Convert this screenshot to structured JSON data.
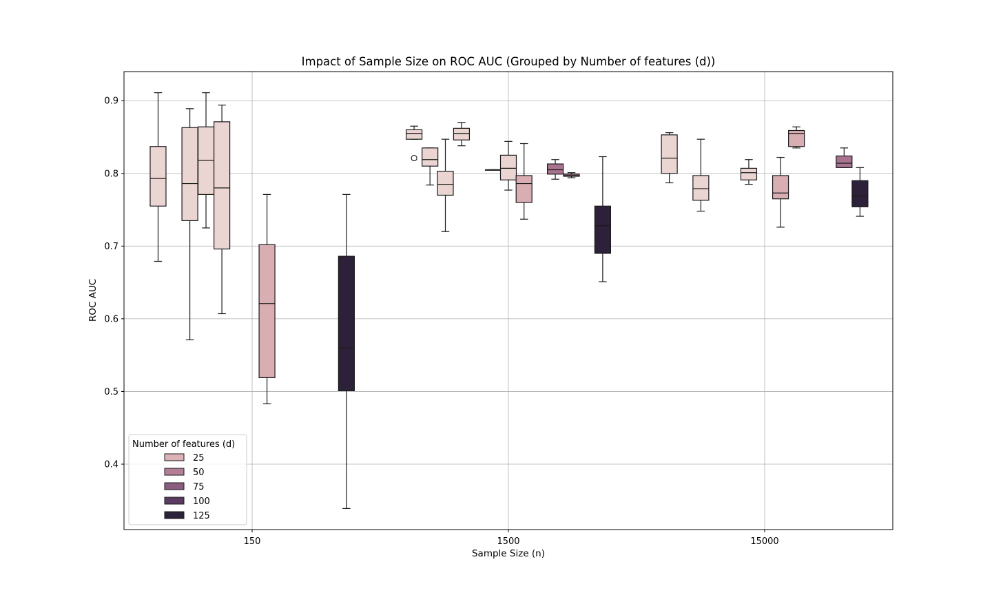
{
  "chart_data": {
    "type": "box",
    "title": "Impact of Sample Size on ROC AUC (Grouped by Number of features (d))",
    "xlabel": "Sample Size (n)",
    "ylabel": "ROC AUC",
    "categories": [
      "150",
      "1500",
      "15000"
    ],
    "ylim": [
      0.31,
      0.94
    ],
    "yticks": [
      0.4,
      0.5,
      0.6,
      0.7,
      0.8,
      0.9
    ],
    "grid": true,
    "legend": {
      "title": "Number of features (d)",
      "position": "lower-left",
      "entries": [
        {
          "label": "25",
          "color": "#dcb2b7"
        },
        {
          "label": "50",
          "color": "#b47e96"
        },
        {
          "label": "75",
          "color": "#8a5c80"
        },
        {
          "label": "100",
          "color": "#5c3b62"
        },
        {
          "label": "125",
          "color": "#2b2138"
        }
      ]
    },
    "boxes": [
      {
        "category": "150",
        "offset": -0.367,
        "color": "#ead5d2",
        "whisker_low": 0.679,
        "q1": 0.755,
        "median": 0.793,
        "q3": 0.837,
        "whisker_high": 0.911,
        "outliers": []
      },
      {
        "category": "150",
        "offset": -0.243,
        "color": "#ead5d2",
        "whisker_low": 0.571,
        "q1": 0.735,
        "median": 0.786,
        "q3": 0.863,
        "whisker_high": 0.889,
        "outliers": []
      },
      {
        "category": "150",
        "offset": -0.18,
        "color": "#ead5d2",
        "whisker_low": 0.725,
        "q1": 0.771,
        "median": 0.818,
        "q3": 0.864,
        "whisker_high": 0.911,
        "outliers": []
      },
      {
        "category": "150",
        "offset": -0.118,
        "color": "#ead5d2",
        "whisker_low": 0.607,
        "q1": 0.696,
        "median": 0.78,
        "q3": 0.871,
        "whisker_high": 0.894,
        "outliers": []
      },
      {
        "category": "150",
        "offset": 0.058,
        "color": "#d9aeb3",
        "whisker_low": 0.483,
        "q1": 0.519,
        "median": 0.621,
        "q3": 0.702,
        "whisker_high": 0.771,
        "outliers": []
      },
      {
        "category": "150",
        "offset": 0.368,
        "color": "#2c2139",
        "whisker_low": 0.339,
        "q1": 0.501,
        "median": 0.56,
        "q3": 0.686,
        "whisker_high": 0.771,
        "outliers": []
      },
      {
        "category": "1500",
        "offset": -0.368,
        "color": "#ead5d2",
        "whisker_low": 0.847,
        "q1": 0.847,
        "median": 0.855,
        "q3": 0.86,
        "whisker_high": 0.865,
        "outliers": [
          0.821
        ]
      },
      {
        "category": "1500",
        "offset": -0.306,
        "color": "#ead5d2",
        "whisker_low": 0.784,
        "q1": 0.81,
        "median": 0.819,
        "q3": 0.835,
        "whisker_high": 0.835,
        "outliers": []
      },
      {
        "category": "1500",
        "offset": -0.246,
        "color": "#ead5d2",
        "whisker_low": 0.72,
        "q1": 0.77,
        "median": 0.785,
        "q3": 0.803,
        "whisker_high": 0.847,
        "outliers": []
      },
      {
        "category": "1500",
        "offset": -0.183,
        "color": "#ead5d2",
        "whisker_low": 0.838,
        "q1": 0.846,
        "median": 0.855,
        "q3": 0.862,
        "whisker_high": 0.87,
        "outliers": []
      },
      {
        "category": "1500",
        "offset": -0.059,
        "color": "#ead5d2",
        "whisker_low": 0.805,
        "q1": 0.805,
        "median": 0.805,
        "q3": 0.805,
        "whisker_high": 0.805,
        "outliers": []
      },
      {
        "category": "1500",
        "offset": 0.0,
        "color": "#ead5d2",
        "whisker_low": 0.777,
        "q1": 0.791,
        "median": 0.807,
        "q3": 0.825,
        "whisker_high": 0.844,
        "outliers": []
      },
      {
        "category": "1500",
        "offset": 0.061,
        "color": "#d9aeb3",
        "whisker_low": 0.737,
        "q1": 0.76,
        "median": 0.786,
        "q3": 0.797,
        "whisker_high": 0.841,
        "outliers": []
      },
      {
        "category": "1500",
        "offset": 0.183,
        "color": "#a97390",
        "whisker_low": 0.792,
        "q1": 0.799,
        "median": 0.805,
        "q3": 0.813,
        "whisker_high": 0.819,
        "outliers": []
      },
      {
        "category": "1500",
        "offset": 0.246,
        "color": "#a97390",
        "whisker_low": 0.794,
        "q1": 0.796,
        "median": 0.797,
        "q3": 0.799,
        "whisker_high": 0.801,
        "outliers": []
      },
      {
        "category": "1500",
        "offset": 0.368,
        "color": "#2c2139",
        "whisker_low": 0.651,
        "q1": 0.69,
        "median": 0.728,
        "q3": 0.755,
        "whisker_high": 0.823,
        "outliers": []
      },
      {
        "category": "15000",
        "offset": -0.372,
        "color": "#ead5d2",
        "whisker_low": 0.787,
        "q1": 0.8,
        "median": 0.821,
        "q3": 0.853,
        "whisker_high": 0.856,
        "outliers": []
      },
      {
        "category": "15000",
        "offset": -0.249,
        "color": "#ead5d2",
        "whisker_low": 0.748,
        "q1": 0.763,
        "median": 0.779,
        "q3": 0.797,
        "whisker_high": 0.847,
        "outliers": []
      },
      {
        "category": "15000",
        "offset": -0.062,
        "color": "#ead5d2",
        "whisker_low": 0.785,
        "q1": 0.791,
        "median": 0.801,
        "q3": 0.807,
        "whisker_high": 0.819,
        "outliers": []
      },
      {
        "category": "15000",
        "offset": 0.062,
        "color": "#d9aeb3",
        "whisker_low": 0.726,
        "q1": 0.765,
        "median": 0.773,
        "q3": 0.797,
        "whisker_high": 0.822,
        "outliers": []
      },
      {
        "category": "15000",
        "offset": 0.124,
        "color": "#d9aeb3",
        "whisker_low": 0.835,
        "q1": 0.837,
        "median": 0.855,
        "q3": 0.859,
        "whisker_high": 0.864,
        "outliers": []
      },
      {
        "category": "15000",
        "offset": 0.31,
        "color": "#a97390",
        "whisker_low": 0.808,
        "q1": 0.808,
        "median": 0.814,
        "q3": 0.824,
        "whisker_high": 0.835,
        "outliers": []
      },
      {
        "category": "15000",
        "offset": 0.372,
        "color": "#2c2139",
        "whisker_low": 0.741,
        "q1": 0.754,
        "median": 0.769,
        "q3": 0.79,
        "whisker_high": 0.808,
        "outliers": []
      }
    ]
  }
}
